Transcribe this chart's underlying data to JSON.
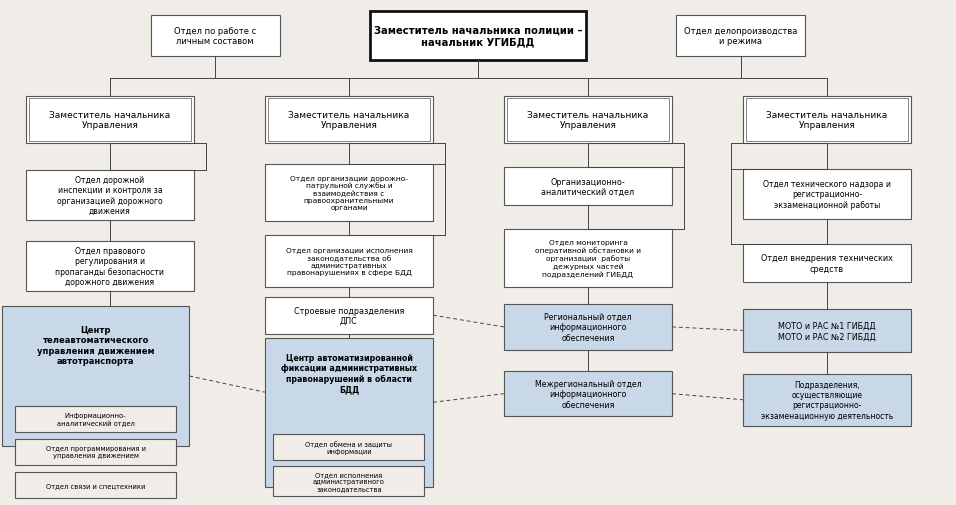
{
  "bg_color": "#f0ede8",
  "box_face": "#ffffff",
  "shaded_face": "#c8d8e8",
  "top_main_text": "Заместитель начальника полиции –\nначальник УГИБДД",
  "top_left_text": "Отдел по работе с\nличным составом",
  "top_right_text": "Отдел делопроизводства\nи режима",
  "dep_text": "Заместитель начальника\nУправления"
}
